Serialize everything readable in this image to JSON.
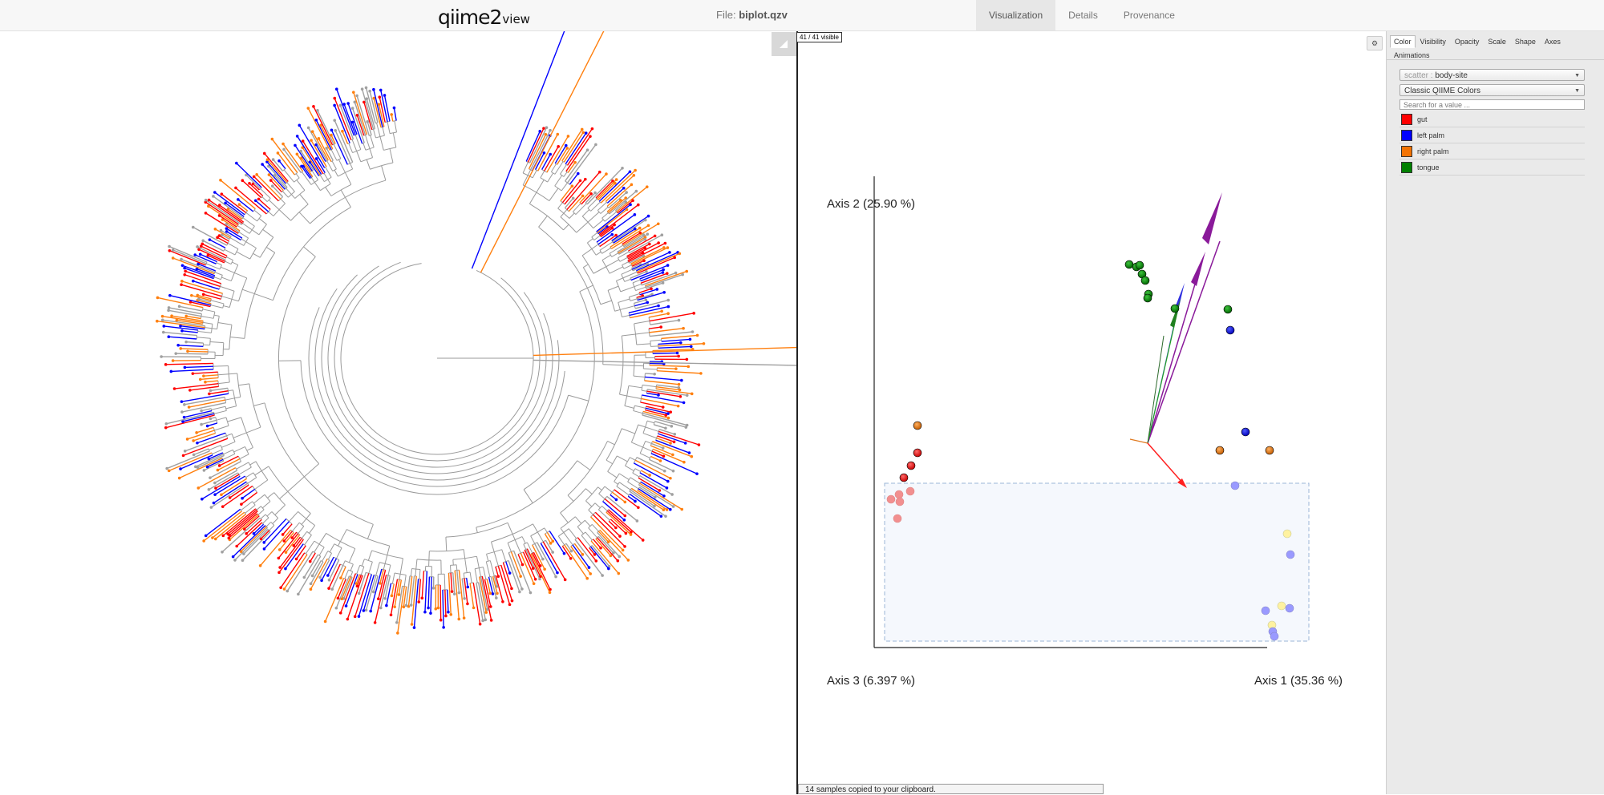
{
  "header": {
    "logo_text": "qiime2",
    "logo_suffix": "view",
    "file_label": "File:",
    "file_name": "biplot.qzv",
    "tabs": [
      {
        "label": "Visualization",
        "active": true
      },
      {
        "label": "Details",
        "active": false
      },
      {
        "label": "Provenance",
        "active": false
      }
    ]
  },
  "plot": {
    "visible_count": "41 / 41 visible",
    "axis1_label": "Axis 1 (35.36 %)",
    "axis2_label": "Axis 2 (25.90 %)",
    "axis3_label": "Axis 3 (6.397 %)",
    "status_message": "14 samples copied to your clipboard.",
    "settings_icon": "gear-icon"
  },
  "tree": {
    "colors": [
      "#ff0000",
      "#0000ff",
      "#ff7f0e",
      "#a0a0a0"
    ]
  },
  "panel": {
    "tabs": [
      "Color",
      "Visibility",
      "Opacity",
      "Scale",
      "Shape",
      "Axes",
      "Animations"
    ],
    "active_tab": "Color",
    "category_prefix": "scatter :",
    "category_value": "body-site",
    "colormap_value": "Classic QIIME Colors",
    "search_placeholder": "Search for a value ...",
    "legend": [
      {
        "label": "gut",
        "color": "#ff0000"
      },
      {
        "label": "left palm",
        "color": "#0000ff"
      },
      {
        "label": "right palm",
        "color": "#f27304"
      },
      {
        "label": "tongue",
        "color": "#008000"
      }
    ]
  }
}
